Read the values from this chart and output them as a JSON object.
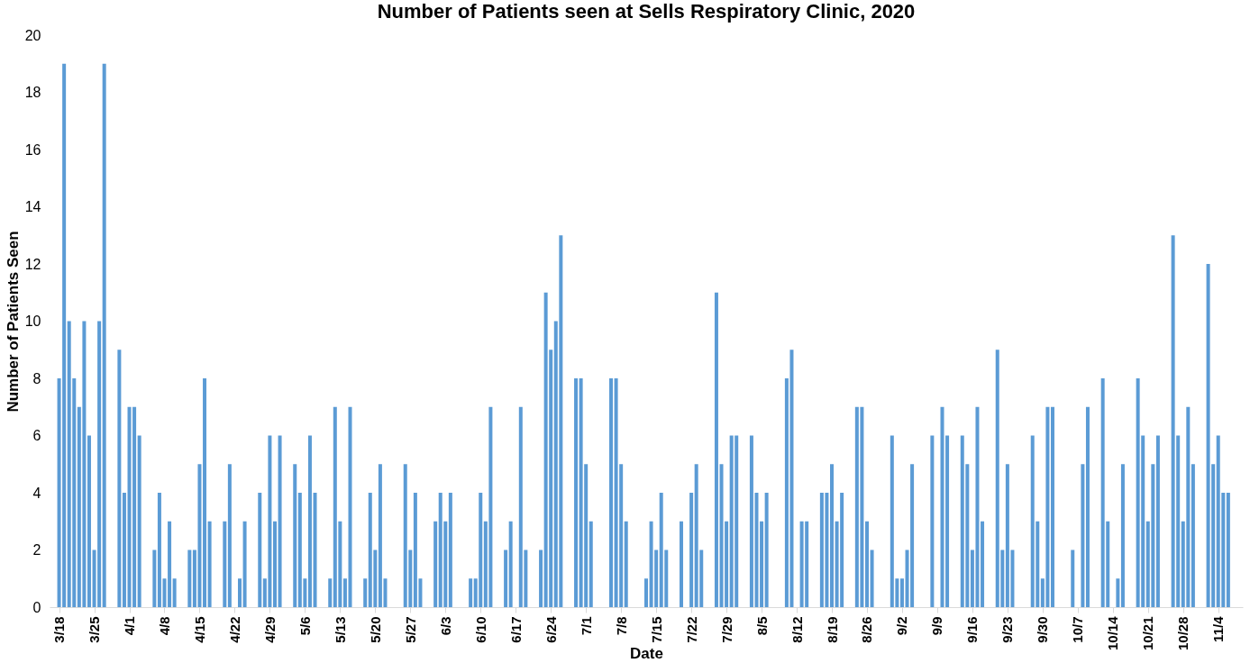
{
  "chart_data": {
    "type": "bar",
    "title": "Number of Patients seen at Sells Respiratory Clinic, 2020",
    "xlabel": "Date",
    "ylabel": "Number of Patients Seen",
    "x": [
      "2020-03-18",
      "2020-03-19",
      "2020-03-20",
      "2020-03-21",
      "2020-03-22",
      "2020-03-23",
      "2020-03-24",
      "2020-03-25",
      "2020-03-26",
      "2020-03-27",
      "2020-03-30",
      "2020-03-31",
      "2020-04-01",
      "2020-04-02",
      "2020-04-03",
      "2020-04-06",
      "2020-04-07",
      "2020-04-08",
      "2020-04-09",
      "2020-04-10",
      "2020-04-13",
      "2020-04-14",
      "2020-04-15",
      "2020-04-16",
      "2020-04-17",
      "2020-04-20",
      "2020-04-21",
      "2020-04-23",
      "2020-04-24",
      "2020-04-27",
      "2020-04-28",
      "2020-04-29",
      "2020-04-30",
      "2020-05-01",
      "2020-05-04",
      "2020-05-05",
      "2020-05-06",
      "2020-05-07",
      "2020-05-08",
      "2020-05-11",
      "2020-05-12",
      "2020-05-13",
      "2020-05-14",
      "2020-05-15",
      "2020-05-18",
      "2020-05-19",
      "2020-05-20",
      "2020-05-21",
      "2020-05-22",
      "2020-05-26",
      "2020-05-27",
      "2020-05-28",
      "2020-05-29",
      "2020-06-01",
      "2020-06-02",
      "2020-06-03",
      "2020-06-04",
      "2020-06-08",
      "2020-06-09",
      "2020-06-10",
      "2020-06-11",
      "2020-06-12",
      "2020-06-15",
      "2020-06-16",
      "2020-06-18",
      "2020-06-19",
      "2020-06-22",
      "2020-06-23",
      "2020-06-24",
      "2020-06-25",
      "2020-06-26",
      "2020-06-29",
      "2020-06-30",
      "2020-07-01",
      "2020-07-02",
      "2020-07-06",
      "2020-07-07",
      "2020-07-08",
      "2020-07-09",
      "2020-07-13",
      "2020-07-14",
      "2020-07-15",
      "2020-07-16",
      "2020-07-17",
      "2020-07-20",
      "2020-07-22",
      "2020-07-23",
      "2020-07-24",
      "2020-07-27",
      "2020-07-28",
      "2020-07-29",
      "2020-07-30",
      "2020-07-31",
      "2020-08-03",
      "2020-08-04",
      "2020-08-05",
      "2020-08-06",
      "2020-08-10",
      "2020-08-11",
      "2020-08-13",
      "2020-08-14",
      "2020-08-17",
      "2020-08-18",
      "2020-08-19",
      "2020-08-20",
      "2020-08-21",
      "2020-08-24",
      "2020-08-25",
      "2020-08-26",
      "2020-08-27",
      "2020-08-31",
      "2020-09-01",
      "2020-09-02",
      "2020-09-03",
      "2020-09-04",
      "2020-09-08",
      "2020-09-10",
      "2020-09-11",
      "2020-09-14",
      "2020-09-15",
      "2020-09-16",
      "2020-09-17",
      "2020-09-18",
      "2020-09-21",
      "2020-09-22",
      "2020-09-23",
      "2020-09-24",
      "2020-09-28",
      "2020-09-29",
      "2020-09-30",
      "2020-10-01",
      "2020-10-02",
      "2020-10-06",
      "2020-10-08",
      "2020-10-09",
      "2020-10-12",
      "2020-10-13",
      "2020-10-15",
      "2020-10-16",
      "2020-10-19",
      "2020-10-20",
      "2020-10-21",
      "2020-10-22",
      "2020-10-23",
      "2020-10-26",
      "2020-10-27",
      "2020-10-28",
      "2020-10-29",
      "2020-10-30",
      "2020-11-02",
      "2020-11-03",
      "2020-11-04",
      "2020-11-05",
      "2020-11-06"
    ],
    "values": [
      8,
      19,
      10,
      8,
      7,
      10,
      6,
      2,
      10,
      19,
      9,
      4,
      7,
      7,
      6,
      2,
      4,
      1,
      3,
      1,
      2,
      2,
      5,
      8,
      3,
      3,
      5,
      1,
      3,
      4,
      1,
      6,
      3,
      6,
      5,
      4,
      1,
      6,
      4,
      1,
      7,
      3,
      1,
      7,
      1,
      4,
      2,
      5,
      1,
      5,
      2,
      4,
      1,
      3,
      4,
      3,
      4,
      1,
      1,
      4,
      3,
      7,
      2,
      3,
      7,
      2,
      2,
      11,
      9,
      10,
      13,
      8,
      8,
      5,
      3,
      8,
      8,
      5,
      3,
      1,
      3,
      2,
      4,
      2,
      3,
      4,
      5,
      2,
      11,
      5,
      3,
      6,
      6,
      6,
      4,
      3,
      4,
      8,
      9,
      3,
      3,
      4,
      4,
      5,
      3,
      4,
      7,
      7,
      3,
      2,
      6,
      1,
      1,
      2,
      5,
      6,
      7,
      6,
      6,
      5,
      2,
      7,
      3,
      9,
      2,
      5,
      2,
      6,
      3,
      1,
      7,
      7,
      2,
      5,
      7,
      8,
      3,
      1,
      5,
      8,
      6,
      3,
      5,
      6,
      13,
      6,
      3,
      7,
      5,
      12,
      5,
      6,
      4,
      4
    ],
    "color": "#5b9bd5",
    "xlim": [
      "2020-03-17",
      "2020-11-08"
    ],
    "xticks": [
      {
        "value": "2020-03-18",
        "label": "3/18"
      },
      {
        "value": "2020-03-25",
        "label": "3/25"
      },
      {
        "value": "2020-04-01",
        "label": "4/1"
      },
      {
        "value": "2020-04-08",
        "label": "4/8"
      },
      {
        "value": "2020-04-15",
        "label": "4/15"
      },
      {
        "value": "2020-04-22",
        "label": "4/22"
      },
      {
        "value": "2020-04-29",
        "label": "4/29"
      },
      {
        "value": "2020-05-06",
        "label": "5/6"
      },
      {
        "value": "2020-05-13",
        "label": "5/13"
      },
      {
        "value": "2020-05-20",
        "label": "5/20"
      },
      {
        "value": "2020-05-27",
        "label": "5/27"
      },
      {
        "value": "2020-06-03",
        "label": "6/3"
      },
      {
        "value": "2020-06-10",
        "label": "6/10"
      },
      {
        "value": "2020-06-17",
        "label": "6/17"
      },
      {
        "value": "2020-06-24",
        "label": "6/24"
      },
      {
        "value": "2020-07-01",
        "label": "7/1"
      },
      {
        "value": "2020-07-08",
        "label": "7/8"
      },
      {
        "value": "2020-07-15",
        "label": "7/15"
      },
      {
        "value": "2020-07-22",
        "label": "7/22"
      },
      {
        "value": "2020-07-29",
        "label": "7/29"
      },
      {
        "value": "2020-08-05",
        "label": "8/5"
      },
      {
        "value": "2020-08-12",
        "label": "8/12"
      },
      {
        "value": "2020-08-19",
        "label": "8/19"
      },
      {
        "value": "2020-08-26",
        "label": "8/26"
      },
      {
        "value": "2020-09-02",
        "label": "9/2"
      },
      {
        "value": "2020-09-09",
        "label": "9/9"
      },
      {
        "value": "2020-09-16",
        "label": "9/16"
      },
      {
        "value": "2020-09-23",
        "label": "9/23"
      },
      {
        "value": "2020-09-30",
        "label": "9/30"
      },
      {
        "value": "2020-10-07",
        "label": "10/7"
      },
      {
        "value": "2020-10-14",
        "label": "10/14"
      },
      {
        "value": "2020-10-21",
        "label": "10/21"
      },
      {
        "value": "2020-10-28",
        "label": "10/28"
      },
      {
        "value": "2020-11-04",
        "label": "11/4"
      }
    ],
    "ylim": [
      0,
      20
    ],
    "yticks": [
      0,
      2,
      4,
      6,
      8,
      10,
      12,
      14,
      16,
      18,
      20
    ],
    "grid": false
  }
}
